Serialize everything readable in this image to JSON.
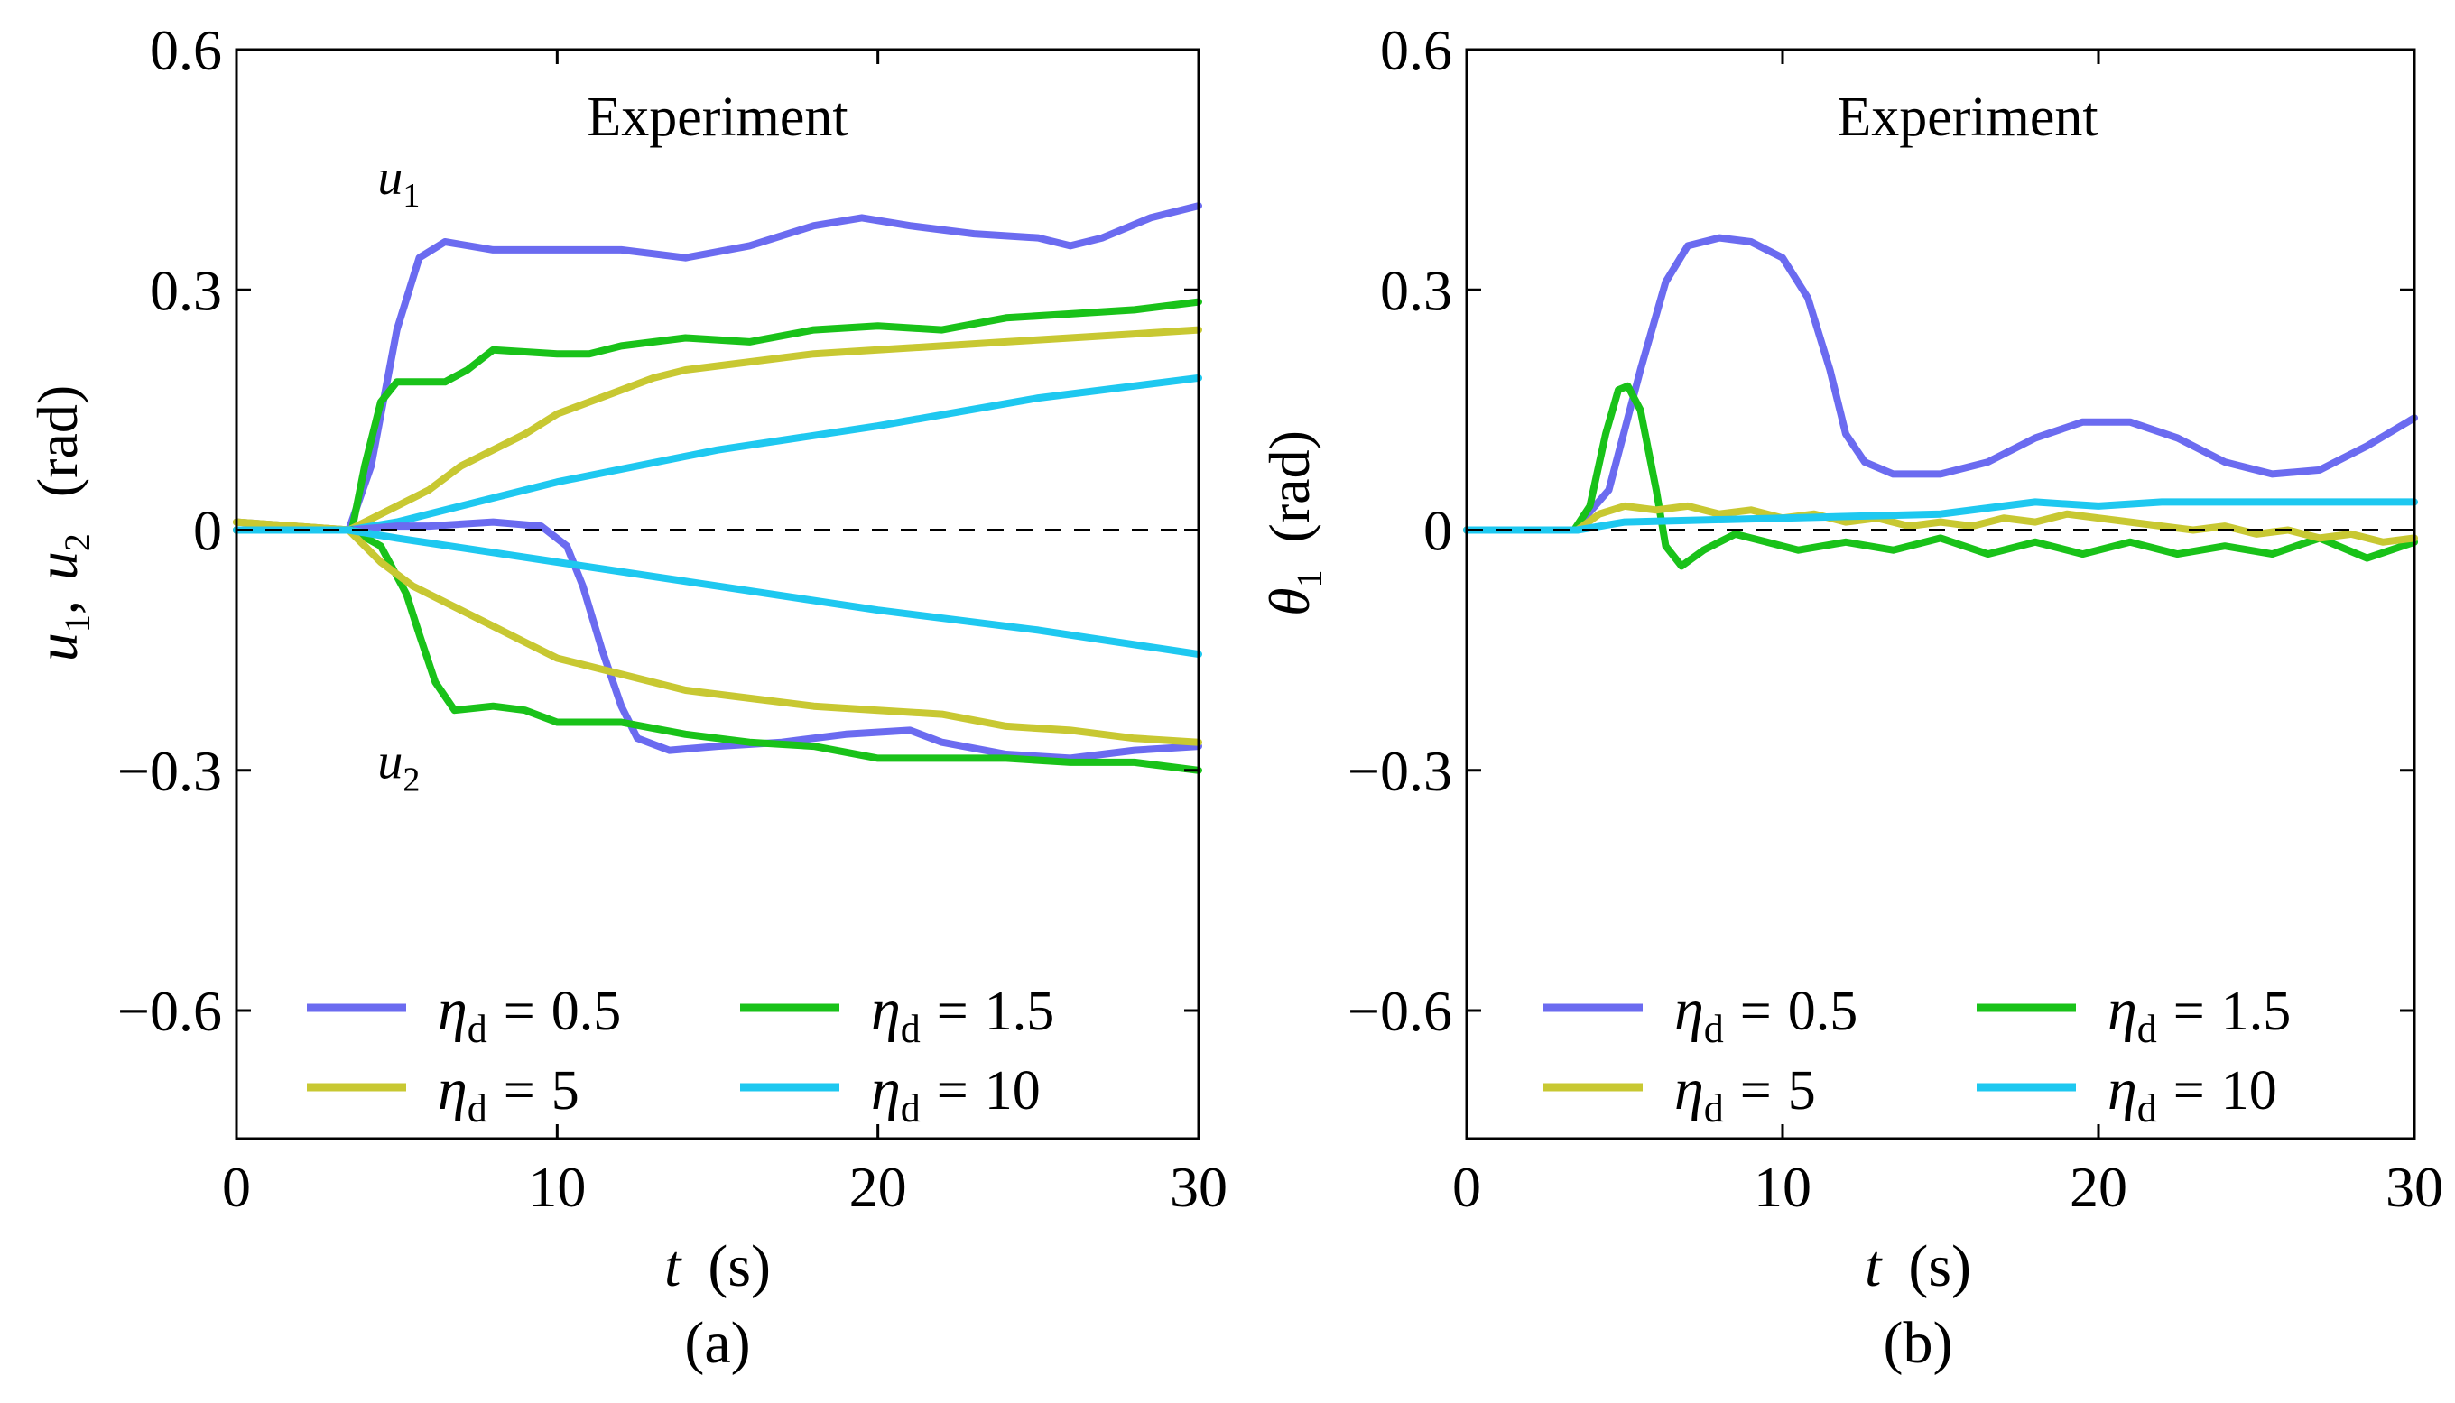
{
  "figure": {
    "panels": [
      "(a)",
      "(b)"
    ]
  },
  "chart_data": [
    {
      "type": "line",
      "panel_label": "(a)",
      "annotation": "Experiment",
      "xlabel": "t",
      "xunit": "(s)",
      "ylabel_parts": [
        "u",
        "1",
        ",",
        "u",
        "2",
        "(rad)"
      ],
      "curve_labels": [
        {
          "base": "u",
          "sub": "1",
          "x": 4.4,
          "y": 0.42
        },
        {
          "base": "u",
          "sub": "2",
          "x": 4.4,
          "y": -0.31
        }
      ],
      "xlim": [
        0,
        30
      ],
      "ylim": [
        -0.76,
        0.6
      ],
      "xticks": [
        0,
        10,
        20,
        30
      ],
      "xtick_labels": [
        "0",
        "10",
        "20",
        "30"
      ],
      "yticks": [
        0.6,
        0.3,
        0,
        -0.3,
        -0.6
      ],
      "ytick_labels": [
        "0.6",
        "0.3",
        "0",
        "−0.3",
        "−0.6"
      ],
      "reference_line": 0,
      "legend": [
        {
          "symbol": "η",
          "sub": "d",
          "eq": "=",
          "value": "0.5",
          "color": "#6b6bf0"
        },
        {
          "symbol": "η",
          "sub": "d",
          "eq": "=",
          "value": "1.5",
          "color": "#19c219"
        },
        {
          "symbol": "η",
          "sub": "d",
          "eq": "=",
          "value": "5",
          "color": "#c8c832"
        },
        {
          "symbol": "η",
          "sub": "d",
          "eq": "=",
          "value": "10",
          "color": "#1ec8f0"
        }
      ],
      "series": [
        {
          "name": "u1, ηd = 0.5",
          "color": "#6b6bf0",
          "points": [
            [
              0,
              0.01
            ],
            [
              3.5,
              0
            ],
            [
              4.2,
              0.08
            ],
            [
              5,
              0.25
            ],
            [
              5.7,
              0.34
            ],
            [
              6.5,
              0.36
            ],
            [
              8,
              0.35
            ],
            [
              10,
              0.35
            ],
            [
              12,
              0.35
            ],
            [
              14,
              0.34
            ],
            [
              16,
              0.355
            ],
            [
              18,
              0.38
            ],
            [
              19.5,
              0.39
            ],
            [
              21,
              0.38
            ],
            [
              23,
              0.37
            ],
            [
              25,
              0.365
            ],
            [
              26,
              0.355
            ],
            [
              27,
              0.365
            ],
            [
              28.5,
              0.39
            ],
            [
              30,
              0.405
            ]
          ]
        },
        {
          "name": "u1, ηd = 1.5",
          "color": "#19c219",
          "points": [
            [
              0,
              0
            ],
            [
              3.6,
              0
            ],
            [
              4,
              0.08
            ],
            [
              4.5,
              0.16
            ],
            [
              5,
              0.185
            ],
            [
              6.5,
              0.185
            ],
            [
              7.2,
              0.2
            ],
            [
              8,
              0.225
            ],
            [
              10,
              0.22
            ],
            [
              11,
              0.22
            ],
            [
              12,
              0.23
            ],
            [
              14,
              0.24
            ],
            [
              16,
              0.235
            ],
            [
              18,
              0.25
            ],
            [
              20,
              0.255
            ],
            [
              22,
              0.25
            ],
            [
              24,
              0.265
            ],
            [
              26,
              0.27
            ],
            [
              28,
              0.275
            ],
            [
              30,
              0.285
            ]
          ]
        },
        {
          "name": "u1, ηd = 5",
          "color": "#c8c832",
          "points": [
            [
              0,
              0.01
            ],
            [
              3.5,
              0
            ],
            [
              5,
              0.03
            ],
            [
              6,
              0.05
            ],
            [
              7,
              0.08
            ],
            [
              8,
              0.1
            ],
            [
              9,
              0.12
            ],
            [
              10,
              0.145
            ],
            [
              11,
              0.16
            ],
            [
              12,
              0.175
            ],
            [
              13,
              0.19
            ],
            [
              14,
              0.2
            ],
            [
              16,
              0.21
            ],
            [
              18,
              0.22
            ],
            [
              20,
              0.225
            ],
            [
              22,
              0.23
            ],
            [
              24,
              0.235
            ],
            [
              26,
              0.24
            ],
            [
              28,
              0.245
            ],
            [
              30,
              0.25
            ]
          ]
        },
        {
          "name": "u1, ηd = 10",
          "color": "#1ec8f0",
          "points": [
            [
              0,
              0
            ],
            [
              3.5,
              0
            ],
            [
              5,
              0.01
            ],
            [
              10,
              0.06
            ],
            [
              15,
              0.1
            ],
            [
              20,
              0.13
            ],
            [
              25,
              0.165
            ],
            [
              30,
              0.19
            ]
          ]
        },
        {
          "name": "u2, ηd = 0.5",
          "color": "#6b6bf0",
          "points": [
            [
              0,
              0
            ],
            [
              3.5,
              0
            ],
            [
              5,
              0.005
            ],
            [
              6,
              0.005
            ],
            [
              8,
              0.01
            ],
            [
              9.5,
              0.005
            ],
            [
              10.3,
              -0.02
            ],
            [
              10.8,
              -0.07
            ],
            [
              11.4,
              -0.15
            ],
            [
              12,
              -0.22
            ],
            [
              12.5,
              -0.26
            ],
            [
              13.5,
              -0.275
            ],
            [
              15,
              -0.27
            ],
            [
              17,
              -0.265
            ],
            [
              19,
              -0.255
            ],
            [
              21,
              -0.25
            ],
            [
              22,
              -0.265
            ],
            [
              24,
              -0.28
            ],
            [
              26,
              -0.285
            ],
            [
              28,
              -0.275
            ],
            [
              30,
              -0.27
            ]
          ]
        },
        {
          "name": "u2, ηd = 1.5",
          "color": "#19c219",
          "points": [
            [
              0,
              0
            ],
            [
              3.6,
              0
            ],
            [
              4.5,
              -0.02
            ],
            [
              5.3,
              -0.08
            ],
            [
              5.7,
              -0.13
            ],
            [
              6.2,
              -0.19
            ],
            [
              6.8,
              -0.225
            ],
            [
              8,
              -0.22
            ],
            [
              9,
              -0.225
            ],
            [
              10,
              -0.24
            ],
            [
              12,
              -0.24
            ],
            [
              14,
              -0.255
            ],
            [
              16,
              -0.265
            ],
            [
              18,
              -0.27
            ],
            [
              20,
              -0.285
            ],
            [
              22,
              -0.285
            ],
            [
              24,
              -0.285
            ],
            [
              26,
              -0.29
            ],
            [
              28,
              -0.29
            ],
            [
              30,
              -0.3
            ]
          ]
        },
        {
          "name": "u2, ηd = 5",
          "color": "#c8c832",
          "points": [
            [
              0,
              0.01
            ],
            [
              3.5,
              0
            ],
            [
              4.5,
              -0.04
            ],
            [
              5.5,
              -0.07
            ],
            [
              7,
              -0.1
            ],
            [
              8,
              -0.12
            ],
            [
              9,
              -0.14
            ],
            [
              10,
              -0.16
            ],
            [
              11,
              -0.17
            ],
            [
              12,
              -0.18
            ],
            [
              13,
              -0.19
            ],
            [
              14,
              -0.2
            ],
            [
              16,
              -0.21
            ],
            [
              18,
              -0.22
            ],
            [
              20,
              -0.225
            ],
            [
              22,
              -0.23
            ],
            [
              24,
              -0.245
            ],
            [
              26,
              -0.25
            ],
            [
              28,
              -0.26
            ],
            [
              30,
              -0.265
            ]
          ]
        },
        {
          "name": "u2, ηd = 10",
          "color": "#1ec8f0",
          "points": [
            [
              0,
              0
            ],
            [
              3.5,
              0
            ],
            [
              5,
              -0.01
            ],
            [
              10,
              -0.04
            ],
            [
              15,
              -0.07
            ],
            [
              20,
              -0.1
            ],
            [
              25,
              -0.125
            ],
            [
              30,
              -0.155
            ]
          ]
        }
      ]
    },
    {
      "type": "line",
      "panel_label": "(b)",
      "annotation": "Experiment",
      "xlabel": "t",
      "xunit": "(s)",
      "ylabel_parts": [
        "θ",
        "1",
        "(rad)"
      ],
      "xlim": [
        0,
        30
      ],
      "ylim": [
        -0.76,
        0.6
      ],
      "xticks": [
        0,
        10,
        20,
        30
      ],
      "xtick_labels": [
        "0",
        "10",
        "20",
        "30"
      ],
      "yticks": [
        0.6,
        0.3,
        0,
        -0.3,
        -0.6
      ],
      "ytick_labels": [
        "0.6",
        "0.3",
        "0",
        "−0.3",
        "−0.6"
      ],
      "reference_line": 0,
      "legend": [
        {
          "symbol": "η",
          "sub": "d",
          "eq": "=",
          "value": "0.5",
          "color": "#6b6bf0"
        },
        {
          "symbol": "η",
          "sub": "d",
          "eq": "=",
          "value": "1.5",
          "color": "#19c219"
        },
        {
          "symbol": "η",
          "sub": "d",
          "eq": "=",
          "value": "5",
          "color": "#c8c832"
        },
        {
          "symbol": "η",
          "sub": "d",
          "eq": "=",
          "value": "10",
          "color": "#1ec8f0"
        }
      ],
      "series": [
        {
          "name": "θ1, ηd = 0.5",
          "color": "#6b6bf0",
          "points": [
            [
              0,
              0
            ],
            [
              3.4,
              0
            ],
            [
              4.5,
              0.05
            ],
            [
              5.5,
              0.2
            ],
            [
              6.3,
              0.31
            ],
            [
              7,
              0.355
            ],
            [
              8,
              0.365
            ],
            [
              9,
              0.36
            ],
            [
              10,
              0.34
            ],
            [
              10.8,
              0.29
            ],
            [
              11.5,
              0.2
            ],
            [
              12,
              0.12
            ],
            [
              12.6,
              0.085
            ],
            [
              13.5,
              0.07
            ],
            [
              15,
              0.07
            ],
            [
              16.5,
              0.085
            ],
            [
              18,
              0.115
            ],
            [
              19.5,
              0.135
            ],
            [
              21,
              0.135
            ],
            [
              22.5,
              0.115
            ],
            [
              24,
              0.085
            ],
            [
              25.5,
              0.07
            ],
            [
              27,
              0.075
            ],
            [
              28.5,
              0.105
            ],
            [
              30,
              0.14
            ]
          ]
        },
        {
          "name": "θ1, ηd = 1.5",
          "color": "#19c219",
          "points": [
            [
              0,
              0
            ],
            [
              3.4,
              0
            ],
            [
              3.9,
              0.03
            ],
            [
              4.4,
              0.12
            ],
            [
              4.8,
              0.175
            ],
            [
              5.1,
              0.18
            ],
            [
              5.5,
              0.15
            ],
            [
              6,
              0.05
            ],
            [
              6.3,
              -0.02
            ],
            [
              6.8,
              -0.045
            ],
            [
              7.5,
              -0.025
            ],
            [
              8.5,
              -0.005
            ],
            [
              9.5,
              -0.015
            ],
            [
              10.5,
              -0.025
            ],
            [
              12,
              -0.015
            ],
            [
              13.5,
              -0.025
            ],
            [
              15,
              -0.01
            ],
            [
              16.5,
              -0.03
            ],
            [
              18,
              -0.015
            ],
            [
              19.5,
              -0.03
            ],
            [
              21,
              -0.015
            ],
            [
              22.5,
              -0.03
            ],
            [
              24,
              -0.02
            ],
            [
              25.5,
              -0.03
            ],
            [
              27,
              -0.01
            ],
            [
              28.5,
              -0.035
            ],
            [
              30,
              -0.015
            ]
          ]
        },
        {
          "name": "θ1, ηd = 5",
          "color": "#c8c832",
          "points": [
            [
              0,
              0
            ],
            [
              3.5,
              0
            ],
            [
              4.2,
              0.02
            ],
            [
              5,
              0.03
            ],
            [
              6,
              0.025
            ],
            [
              7,
              0.03
            ],
            [
              8,
              0.02
            ],
            [
              9,
              0.025
            ],
            [
              10,
              0.015
            ],
            [
              11,
              0.02
            ],
            [
              12,
              0.01
            ],
            [
              13,
              0.015
            ],
            [
              14,
              0.005
            ],
            [
              15,
              0.01
            ],
            [
              16,
              0.005
            ],
            [
              17,
              0.015
            ],
            [
              18,
              0.01
            ],
            [
              19,
              0.02
            ],
            [
              20,
              0.015
            ],
            [
              21,
              0.01
            ],
            [
              22,
              0.005
            ],
            [
              23,
              0
            ],
            [
              24,
              0.005
            ],
            [
              25,
              -0.005
            ],
            [
              26,
              0
            ],
            [
              27,
              -0.01
            ],
            [
              28,
              -0.005
            ],
            [
              29,
              -0.015
            ],
            [
              30,
              -0.01
            ]
          ]
        },
        {
          "name": "θ1, ηd = 10",
          "color": "#1ec8f0",
          "points": [
            [
              0,
              0
            ],
            [
              3.5,
              0
            ],
            [
              5,
              0.01
            ],
            [
              10,
              0.015
            ],
            [
              15,
              0.02
            ],
            [
              18,
              0.035
            ],
            [
              20,
              0.03
            ],
            [
              22,
              0.035
            ],
            [
              25,
              0.035
            ],
            [
              30,
              0.035
            ]
          ]
        }
      ]
    }
  ]
}
